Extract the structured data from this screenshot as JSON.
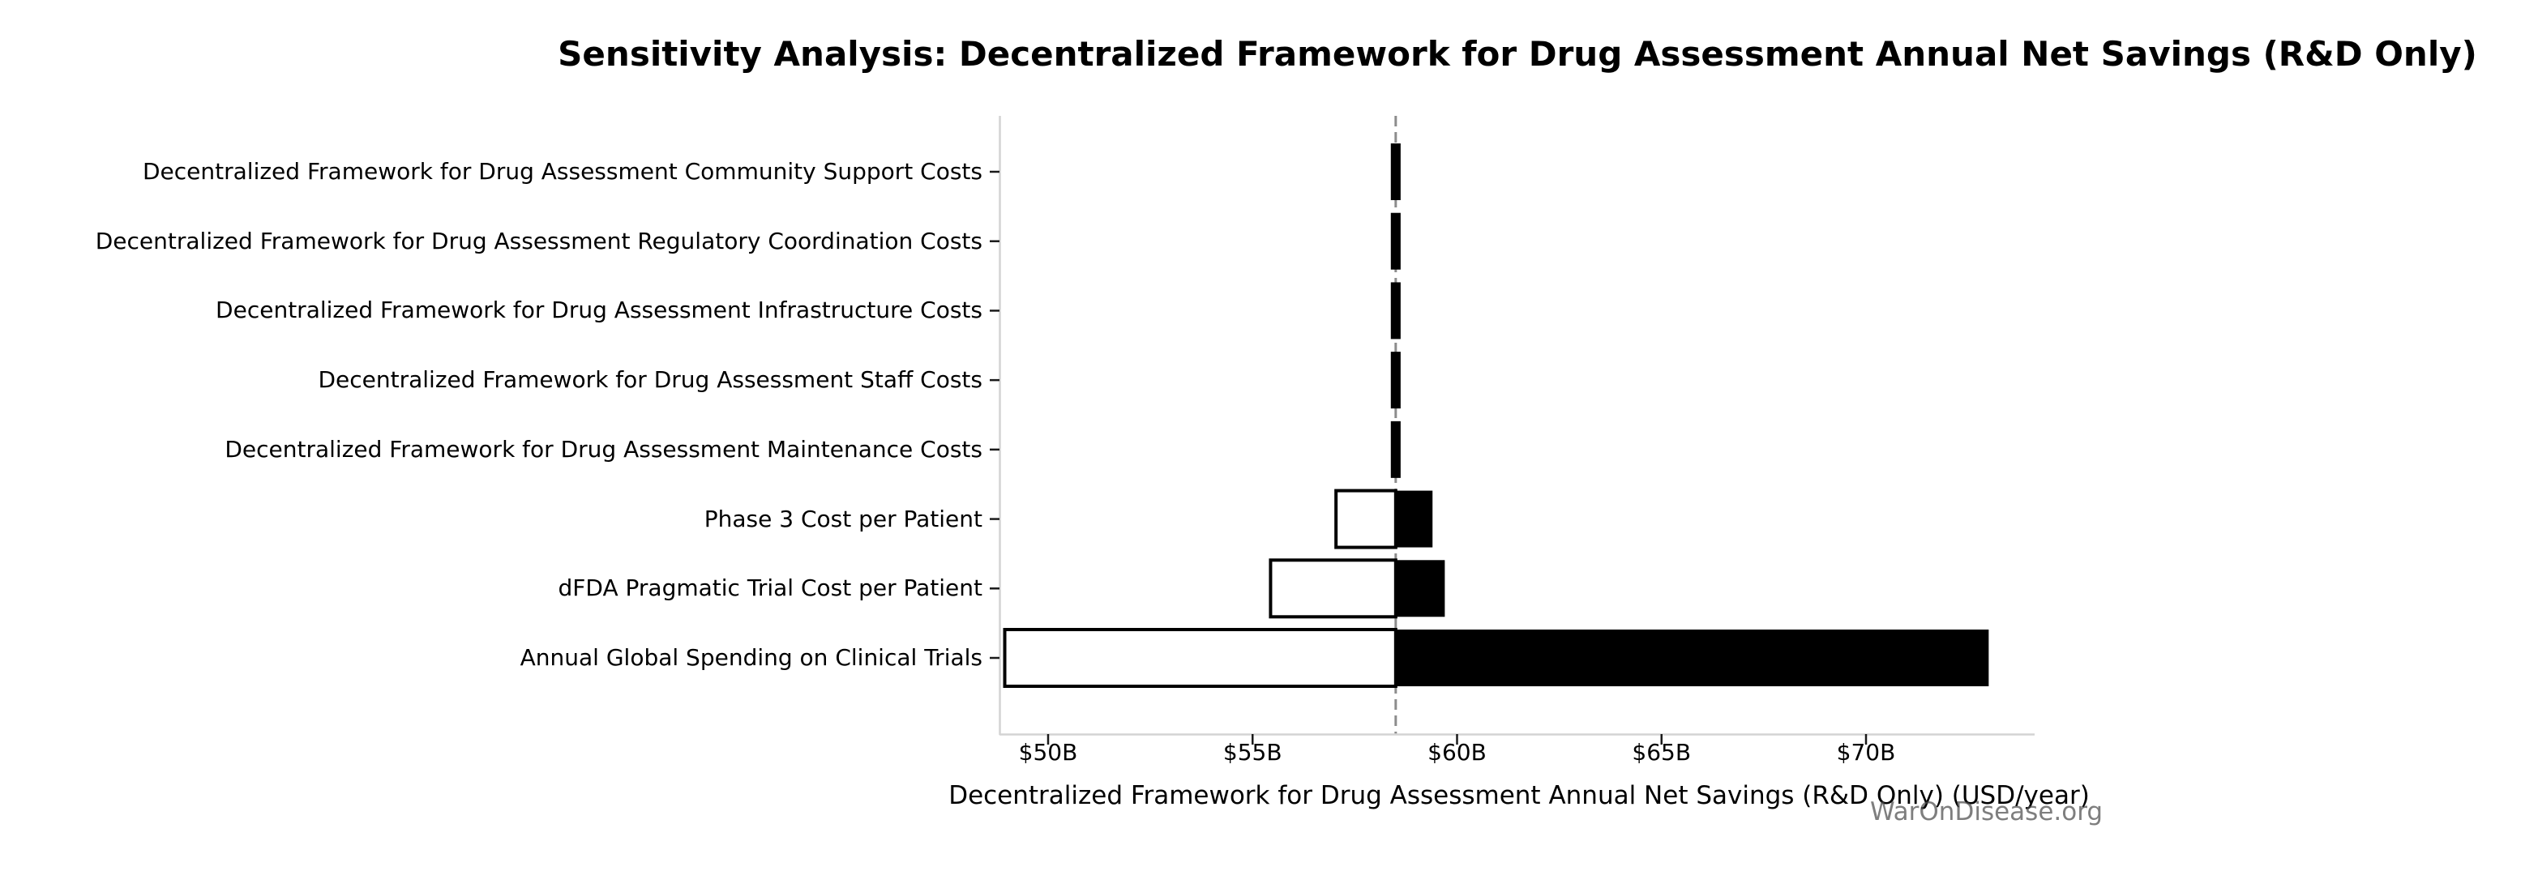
{
  "chart_data": {
    "type": "bar",
    "subtype": "tornado-sensitivity",
    "title": "Sensitivity Analysis: Decentralized Framework for Drug Assessment Annual Net Savings (R&D Only)",
    "xlabel": "Decentralized Framework for Drug Assessment Annual Net Savings (R&D Only) (USD/year)",
    "watermark": "WarOnDisease.org",
    "baseline_value_billion": 58.5,
    "xlim_billion": [
      48.8,
      74.1
    ],
    "grid": false,
    "legend": "none",
    "x_ticks": [
      {
        "value": 50,
        "label": "$50B"
      },
      {
        "value": 55,
        "label": "$55B"
      },
      {
        "value": 60,
        "label": "$60B"
      },
      {
        "value": 65,
        "label": "$65B"
      },
      {
        "value": 70,
        "label": "$70B"
      }
    ],
    "rows": [
      {
        "label": "Decentralized Framework for Drug Assessment Community Support Costs",
        "low_billion": 58.4,
        "high_billion": 58.6
      },
      {
        "label": "Decentralized Framework for Drug Assessment Regulatory Coordination Costs",
        "low_billion": 58.4,
        "high_billion": 58.6
      },
      {
        "label": "Decentralized Framework for Drug Assessment Infrastructure Costs",
        "low_billion": 58.4,
        "high_billion": 58.6
      },
      {
        "label": "Decentralized Framework for Drug Assessment Staff Costs",
        "low_billion": 58.4,
        "high_billion": 58.6
      },
      {
        "label": "Decentralized Framework for Drug Assessment Maintenance Costs",
        "low_billion": 58.4,
        "high_billion": 58.6
      },
      {
        "label": "Phase 3 Cost per Patient",
        "low_billion": 57.0,
        "high_billion": 59.4
      },
      {
        "label": "dFDA Pragmatic Trial Cost per Patient",
        "low_billion": 55.4,
        "high_billion": 59.7
      },
      {
        "label": "Annual Global Spending on Clinical Trials",
        "low_billion": 48.9,
        "high_billion": 73.0
      }
    ],
    "colors": {
      "low_bar_fill": "#ffffff",
      "high_bar_fill": "#000000",
      "bar_edge": "#000000",
      "baseline_line": "#8c8c8c",
      "spine": "#d4d4d4",
      "tick_mark": "#1a1a1a",
      "text": "#000000",
      "watermark_text": "#4d4d4d"
    }
  }
}
